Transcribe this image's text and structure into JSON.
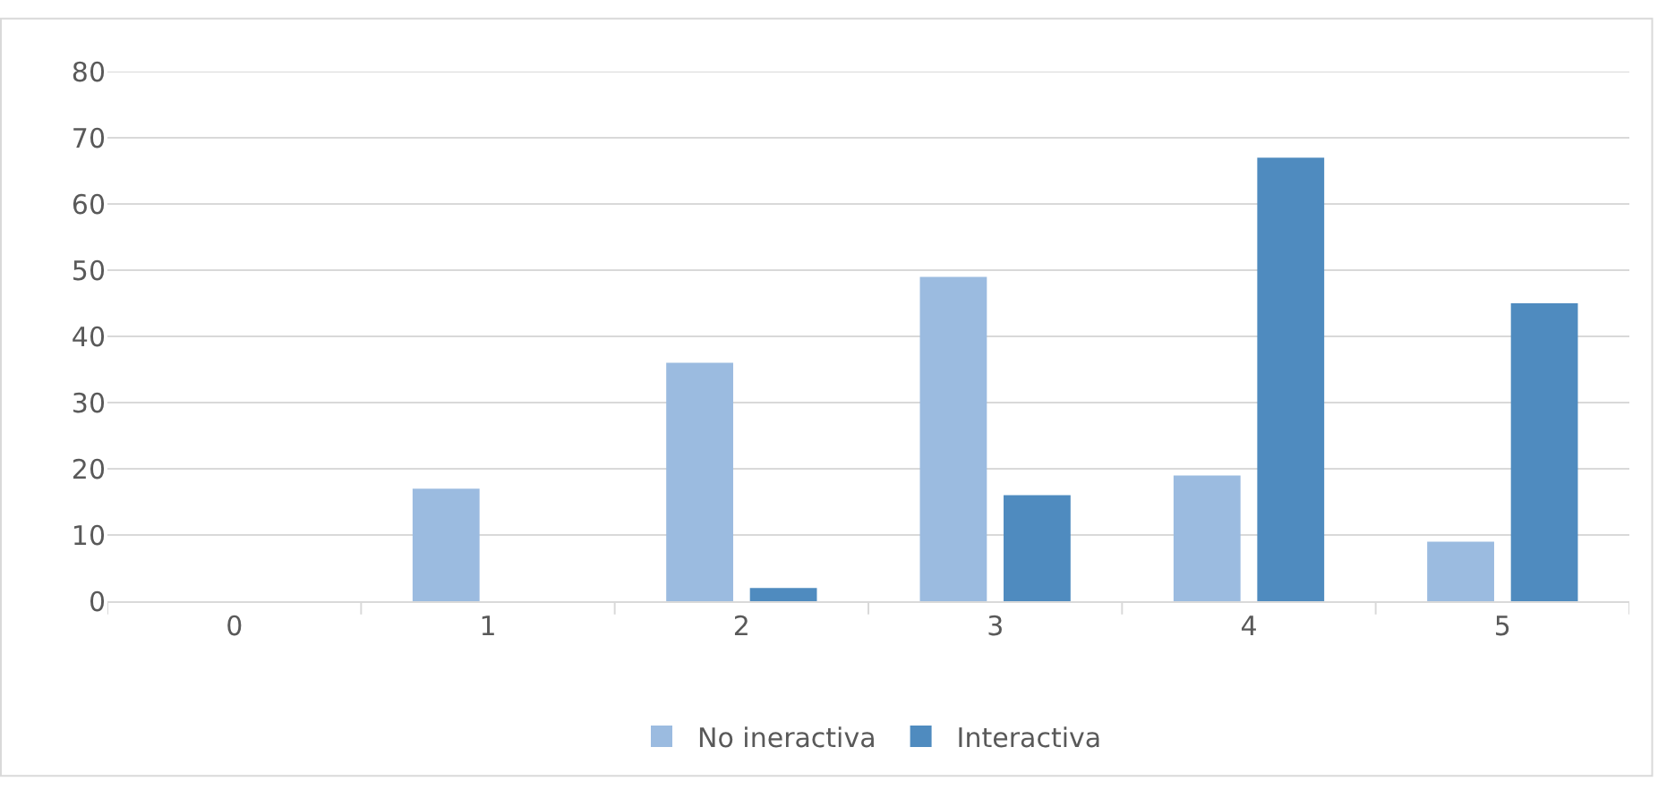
{
  "chart_data": {
    "type": "bar",
    "categories": [
      "0",
      "1",
      "2",
      "3",
      "4",
      "5"
    ],
    "series": [
      {
        "name": "No ineractiva",
        "color": "#9bbbe0",
        "values": [
          0,
          17,
          36,
          49,
          19,
          9
        ]
      },
      {
        "name": "Interactiva",
        "color": "#4f8bbf",
        "values": [
          0,
          0,
          2,
          16,
          67,
          45
        ]
      }
    ],
    "ylim": [
      0,
      80
    ],
    "yticks": [
      0,
      10,
      20,
      30,
      40,
      50,
      60,
      70,
      80
    ],
    "grid": "y",
    "legend": "bottom"
  }
}
